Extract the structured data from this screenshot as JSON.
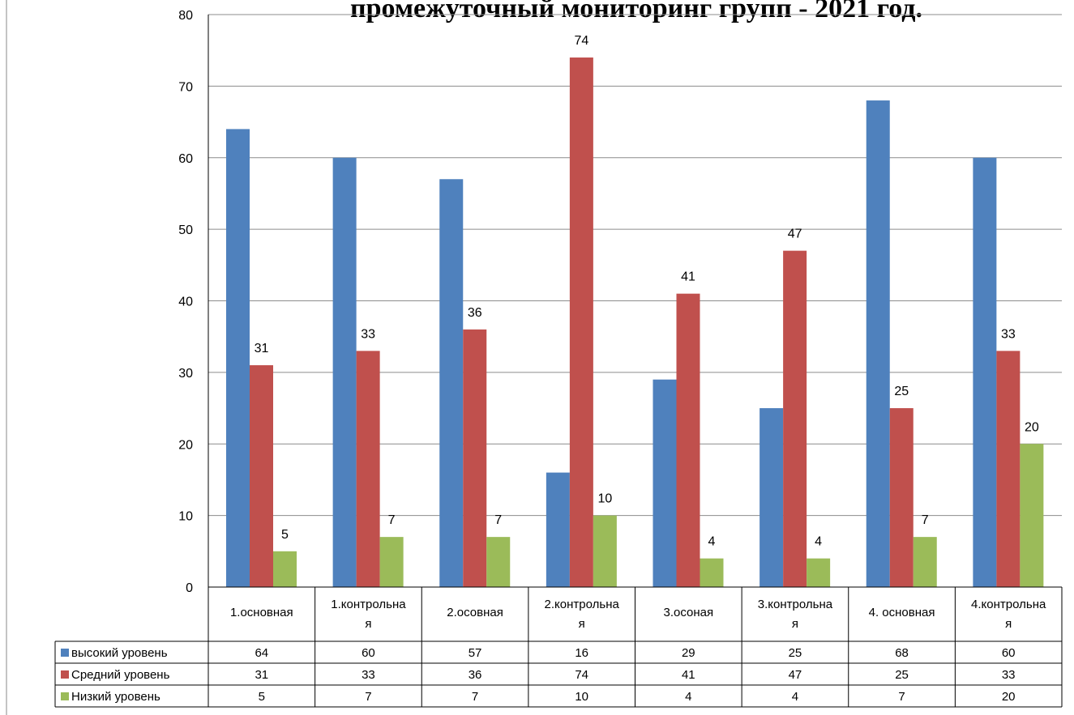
{
  "chart_data": {
    "type": "bar",
    "title": "промежуточный мониторинг групп - 2021 год.",
    "categories": [
      "1.основная",
      "1.контрольна я",
      "2.осовная",
      "2.контрольна я",
      "3.осоная",
      "3.контрольна я",
      "4. основная",
      "4.контрольна я"
    ],
    "series": [
      {
        "name": "высокий уровень",
        "color": "#4F81BD",
        "values": [
          64,
          60,
          57,
          16,
          29,
          25,
          68,
          60
        ],
        "data_labels": false
      },
      {
        "name": "Средний уровень",
        "color": "#C0504D",
        "values": [
          31,
          33,
          36,
          74,
          41,
          47,
          25,
          33
        ],
        "data_labels": true
      },
      {
        "name": "Низкий уровень",
        "color": "#9BBB59",
        "values": [
          5,
          7,
          7,
          10,
          4,
          4,
          7,
          20
        ],
        "data_labels": true
      }
    ],
    "ylim": [
      0,
      80
    ],
    "yticks": [
      0,
      10,
      20,
      30,
      40,
      50,
      60,
      70,
      80
    ],
    "grid": true,
    "legend": "data-table-left"
  }
}
